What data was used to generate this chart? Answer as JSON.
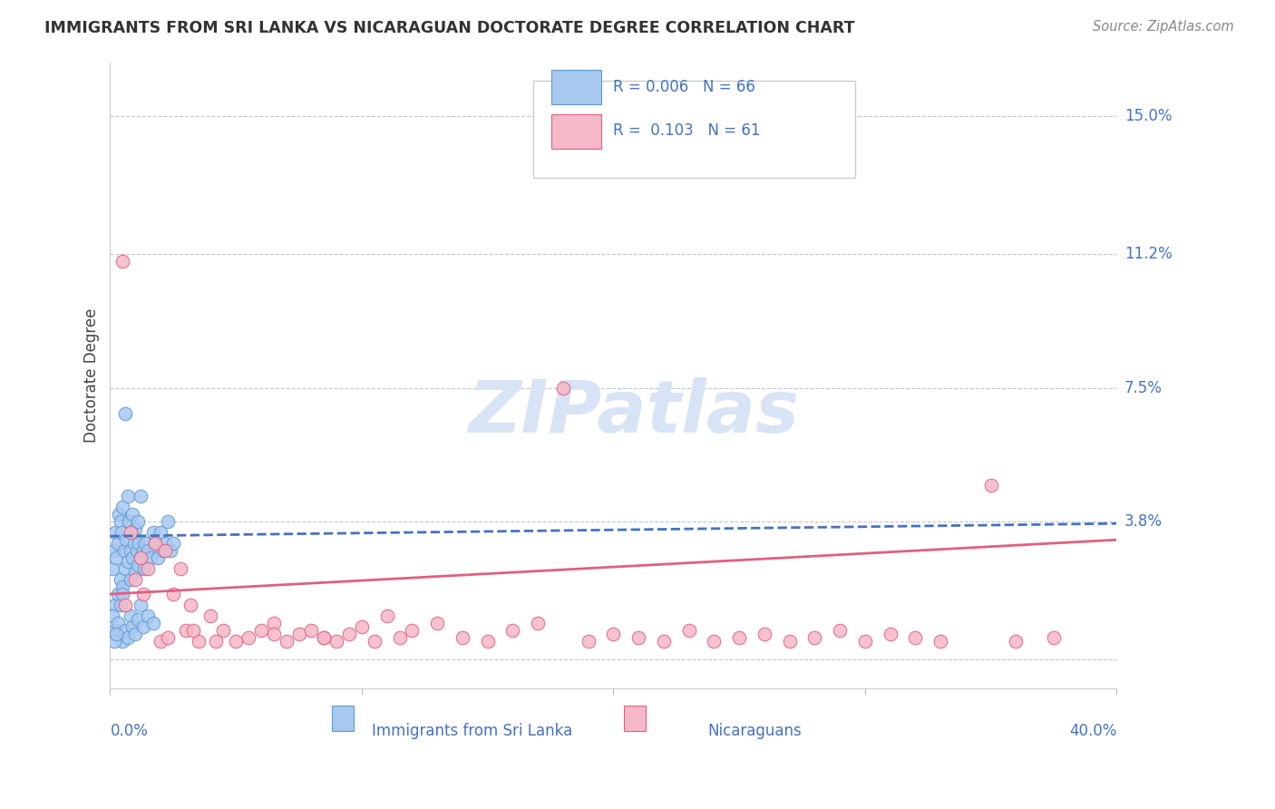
{
  "title": "IMMIGRANTS FROM SRI LANKA VS NICARAGUAN DOCTORATE DEGREE CORRELATION CHART",
  "source_text": "Source: ZipAtlas.com",
  "ylabel": "Doctorate Degree",
  "legend_blue_R": "0.006",
  "legend_blue_N": "66",
  "legend_pink_R": "0.103",
  "legend_pink_N": "61",
  "legend_label1": "Immigrants from Sri Lanka",
  "legend_label2": "Nicaraguans",
  "xlim": [
    0.0,
    40.0
  ],
  "ylim": [
    -0.8,
    16.5
  ],
  "ytick_vals": [
    3.8,
    7.5,
    11.2,
    15.0
  ],
  "ytick_labels": [
    "3.8%",
    "7.5%",
    "11.2%",
    "15.0%"
  ],
  "grid_y_vals": [
    0.0,
    3.8,
    7.5,
    11.2,
    15.0
  ],
  "blue_scatter_color": "#A8C8F0",
  "blue_scatter_edge": "#5B9BD5",
  "pink_scatter_color": "#F5B8C8",
  "pink_scatter_edge": "#E06080",
  "blue_line_color": "#4472C4",
  "pink_line_color": "#E06080",
  "title_color": "#333333",
  "axis_label_color": "#444444",
  "tick_color": "#4472C4",
  "watermark_color": "#D8E4F5",
  "background_color": "#FFFFFF",
  "sri_lanka_x": [
    0.1,
    0.15,
    0.2,
    0.2,
    0.25,
    0.3,
    0.3,
    0.35,
    0.4,
    0.4,
    0.45,
    0.5,
    0.5,
    0.55,
    0.6,
    0.6,
    0.65,
    0.7,
    0.7,
    0.75,
    0.8,
    0.8,
    0.85,
    0.9,
    0.9,
    0.95,
    1.0,
    1.0,
    1.05,
    1.1,
    1.1,
    1.15,
    1.2,
    1.2,
    1.3,
    1.35,
    1.4,
    1.5,
    1.6,
    1.7,
    1.8,
    1.9,
    2.0,
    2.1,
    2.2,
    2.3,
    2.4,
    2.5,
    0.1,
    0.2,
    0.3,
    0.4,
    0.5,
    0.5,
    0.6,
    0.7,
    0.8,
    0.9,
    1.0,
    1.1,
    1.2,
    1.3,
    1.5,
    1.7,
    0.15,
    0.25
  ],
  "sri_lanka_y": [
    2.5,
    3.0,
    3.5,
    1.5,
    2.8,
    3.2,
    1.8,
    4.0,
    2.2,
    3.8,
    3.5,
    4.2,
    2.0,
    3.0,
    6.8,
    2.5,
    3.3,
    2.7,
    4.5,
    3.8,
    3.0,
    2.2,
    3.5,
    2.8,
    4.0,
    3.2,
    3.6,
    2.4,
    3.0,
    3.8,
    2.6,
    3.2,
    4.5,
    2.8,
    3.0,
    2.5,
    3.2,
    3.0,
    2.8,
    3.5,
    3.2,
    2.8,
    3.5,
    3.0,
    3.2,
    3.8,
    3.0,
    3.2,
    1.2,
    0.8,
    1.0,
    1.5,
    0.5,
    1.8,
    0.8,
    0.6,
    1.2,
    0.9,
    0.7,
    1.1,
    1.5,
    0.9,
    1.2,
    1.0,
    0.5,
    0.7
  ],
  "nicaraguan_x": [
    0.5,
    0.8,
    1.0,
    1.2,
    1.5,
    1.8,
    2.0,
    2.2,
    2.5,
    2.8,
    3.0,
    3.2,
    3.5,
    4.0,
    4.5,
    5.0,
    5.5,
    6.0,
    6.5,
    7.0,
    7.5,
    8.0,
    8.5,
    9.0,
    9.5,
    10.0,
    10.5,
    11.0,
    11.5,
    12.0,
    13.0,
    14.0,
    15.0,
    16.0,
    17.0,
    18.0,
    19.0,
    20.0,
    21.0,
    22.0,
    23.0,
    24.0,
    25.0,
    26.0,
    27.0,
    28.0,
    29.0,
    30.0,
    31.0,
    32.0,
    33.0,
    35.0,
    36.0,
    37.5,
    0.6,
    1.3,
    2.3,
    3.3,
    4.2,
    6.5,
    8.5
  ],
  "nicaraguan_y": [
    11.0,
    3.5,
    2.2,
    2.8,
    2.5,
    3.2,
    0.5,
    3.0,
    1.8,
    2.5,
    0.8,
    1.5,
    0.5,
    1.2,
    0.8,
    0.5,
    0.6,
    0.8,
    1.0,
    0.5,
    0.7,
    0.8,
    0.6,
    0.5,
    0.7,
    0.9,
    0.5,
    1.2,
    0.6,
    0.8,
    1.0,
    0.6,
    0.5,
    0.8,
    1.0,
    7.5,
    0.5,
    0.7,
    0.6,
    0.5,
    0.8,
    0.5,
    0.6,
    0.7,
    0.5,
    0.6,
    0.8,
    0.5,
    0.7,
    0.6,
    0.5,
    4.8,
    0.5,
    0.6,
    1.5,
    1.8,
    0.6,
    0.8,
    0.5,
    0.7,
    0.6
  ],
  "blue_trend_x": [
    0.0,
    40.0
  ],
  "blue_trend_y": [
    3.4,
    3.75
  ],
  "pink_trend_x": [
    0.0,
    40.0
  ],
  "pink_trend_y": [
    1.8,
    3.3
  ]
}
